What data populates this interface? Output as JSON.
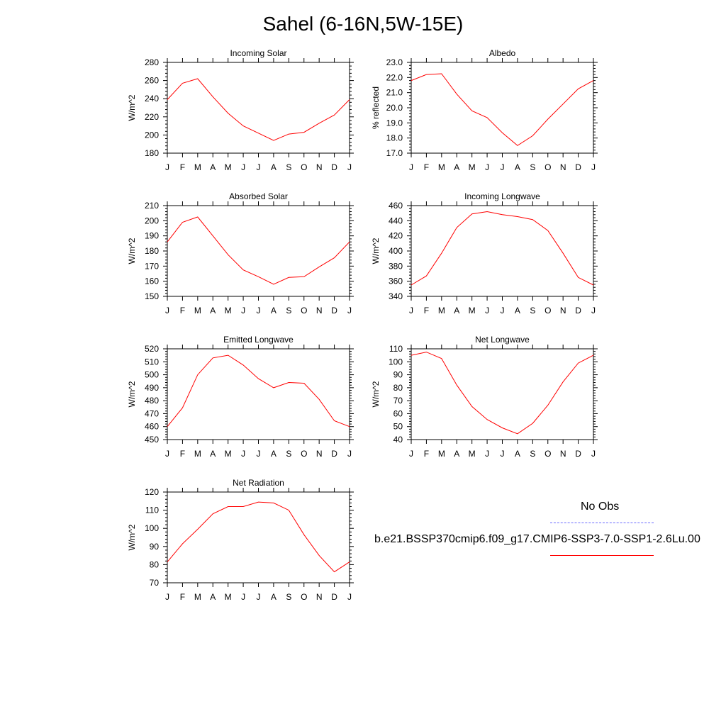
{
  "title": "Sahel (6-16N,5W-15E)",
  "line_color": "#ff0000",
  "obs_line_color": "#6b6bff",
  "legend": {
    "obs_label": "No Obs",
    "model_label": "b.e21.BSSP370cmip6.f09_g17.CMIP6-SSP3-7.0-SSP1-2.6Lu.00"
  },
  "chart_data": [
    {
      "type": "line",
      "title": "Incoming Solar",
      "ylabel": "W/m^2",
      "categories": [
        "J",
        "F",
        "M",
        "A",
        "M",
        "J",
        "J",
        "A",
        "S",
        "O",
        "N",
        "D",
        "J"
      ],
      "ylim": [
        180,
        280
      ],
      "yticks": [
        "180",
        "200",
        "220",
        "240",
        "260",
        "280"
      ],
      "series": [
        {
          "values": [
            239,
            257,
            262,
            242,
            224,
            210,
            202,
            194,
            201,
            203,
            213,
            222,
            239
          ]
        }
      ]
    },
    {
      "type": "line",
      "title": "Albedo",
      "ylabel": "% reflected",
      "categories": [
        "J",
        "F",
        "M",
        "A",
        "M",
        "J",
        "J",
        "A",
        "S",
        "O",
        "N",
        "D",
        "J"
      ],
      "ylim": [
        17.0,
        23.0
      ],
      "yticks": [
        "17.0",
        "18.0",
        "19.0",
        "20.0",
        "21.0",
        "22.0",
        "23.0"
      ],
      "series": [
        {
          "values": [
            21.8,
            22.2,
            22.25,
            20.9,
            19.8,
            19.35,
            18.35,
            17.5,
            18.15,
            19.25,
            20.25,
            21.25,
            21.8
          ]
        }
      ]
    },
    {
      "type": "line",
      "title": "Absorbed Solar",
      "ylabel": "W/m^2",
      "categories": [
        "J",
        "F",
        "M",
        "A",
        "M",
        "J",
        "J",
        "A",
        "S",
        "O",
        "N",
        "D",
        "J"
      ],
      "ylim": [
        150,
        210
      ],
      "yticks": [
        "150",
        "160",
        "170",
        "180",
        "190",
        "200",
        "210"
      ],
      "series": [
        {
          "values": [
            186,
            199,
            202.5,
            190,
            177.5,
            167.5,
            163,
            158,
            162.5,
            163,
            169.5,
            175.5,
            186
          ]
        }
      ]
    },
    {
      "type": "line",
      "title": "Incoming Longwave",
      "ylabel": "W/m^2",
      "categories": [
        "J",
        "F",
        "M",
        "A",
        "M",
        "J",
        "J",
        "A",
        "S",
        "O",
        "N",
        "D",
        "J"
      ],
      "ylim": [
        340,
        460
      ],
      "yticks": [
        "340",
        "360",
        "380",
        "400",
        "420",
        "440",
        "460"
      ],
      "series": [
        {
          "values": [
            355,
            367,
            397,
            431,
            449,
            452,
            448,
            445.5,
            441.5,
            427,
            397,
            365,
            355
          ]
        }
      ]
    },
    {
      "type": "line",
      "title": "Emitted Longwave",
      "ylabel": "W/m^2",
      "categories": [
        "J",
        "F",
        "M",
        "A",
        "M",
        "J",
        "J",
        "A",
        "S",
        "O",
        "N",
        "D",
        "J"
      ],
      "ylim": [
        450,
        520
      ],
      "yticks": [
        "450",
        "460",
        "470",
        "480",
        "490",
        "500",
        "510",
        "520"
      ],
      "series": [
        {
          "values": [
            460,
            474.5,
            500,
            513,
            515,
            507.5,
            497,
            490,
            494,
            493.5,
            481,
            464.5,
            460
          ]
        }
      ]
    },
    {
      "type": "line",
      "title": "Net Longwave",
      "ylabel": "W/m^2",
      "categories": [
        "J",
        "F",
        "M",
        "A",
        "M",
        "J",
        "J",
        "A",
        "S",
        "O",
        "N",
        "D",
        "J"
      ],
      "ylim": [
        40,
        110
      ],
      "yticks": [
        "40",
        "50",
        "60",
        "70",
        "80",
        "90",
        "100",
        "110"
      ],
      "series": [
        {
          "values": [
            105,
            107.5,
            102.5,
            82,
            65.5,
            55.5,
            49,
            44.5,
            52.5,
            66.5,
            84.5,
            99,
            105
          ]
        }
      ]
    },
    {
      "type": "line",
      "title": "Net Radiation",
      "ylabel": "W/m^2",
      "categories": [
        "J",
        "F",
        "M",
        "A",
        "M",
        "J",
        "J",
        "A",
        "S",
        "O",
        "N",
        "D",
        "J"
      ],
      "ylim": [
        70,
        120
      ],
      "yticks": [
        "70",
        "80",
        "90",
        "100",
        "110",
        "120"
      ],
      "series": [
        {
          "values": [
            81.5,
            91.5,
            99.5,
            108,
            112,
            112,
            114.5,
            114,
            110,
            96.5,
            85,
            76,
            81.5
          ]
        }
      ]
    }
  ]
}
